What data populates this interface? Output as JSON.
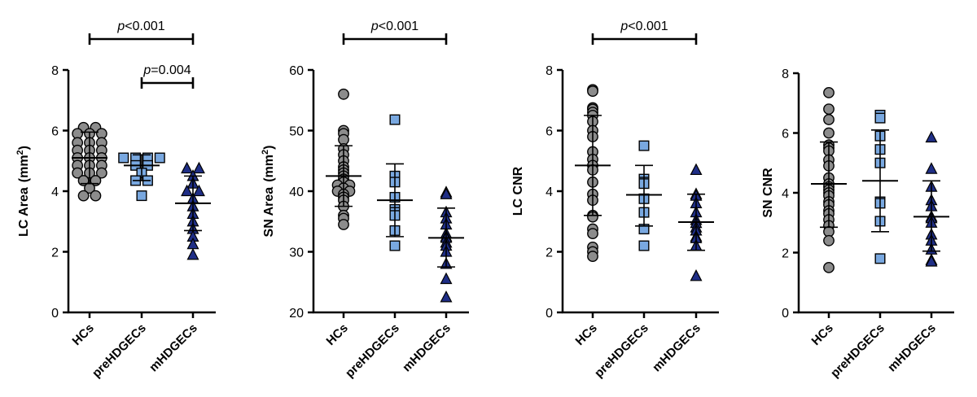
{
  "colors": {
    "hcs": "#8c8c8c",
    "pre": "#79a8e0",
    "mhd": "#1f2e86",
    "stroke": "#000000"
  },
  "chart_data": [
    {
      "type": "scatter",
      "ylabel_main": "LC Area",
      "ylabel_unit": "(mm",
      "ylabel_sup": "2",
      "ylabel_close": ")",
      "ylim": [
        0,
        8
      ],
      "yticks": [
        0,
        2,
        4,
        6,
        8
      ],
      "tick_labels": [
        "0",
        "2",
        "4",
        "6",
        "8"
      ],
      "categories": [
        "HCs",
        "preHDGECs",
        "mHDGECs"
      ],
      "series": [
        {
          "name": "HCs",
          "marker": "circle",
          "mean": 5.1,
          "sd_low": 4.25,
          "sd_high": 5.95,
          "values": [
            6.1,
            6.1,
            5.9,
            5.9,
            5.9,
            5.6,
            5.6,
            5.6,
            5.35,
            5.35,
            5.35,
            5.1,
            5.1,
            5.1,
            4.85,
            4.85,
            4.85,
            4.6,
            4.6,
            4.6,
            4.35,
            4.35,
            4.1,
            3.85,
            3.85
          ]
        },
        {
          "name": "preHDGECs",
          "marker": "square",
          "mean": 4.85,
          "sd_low": 4.35,
          "sd_high": 5.2,
          "values": [
            5.1,
            5.1,
            5.1,
            5.1,
            4.85,
            4.85,
            4.6,
            4.35,
            4.35,
            3.85
          ]
        },
        {
          "name": "mHDGECs",
          "marker": "triangle",
          "mean": 3.6,
          "sd_low": 2.7,
          "sd_high": 4.5,
          "values": [
            4.75,
            4.75,
            4.5,
            4.25,
            4.0,
            4.0,
            3.75,
            3.5,
            3.25,
            3.0,
            2.75,
            2.5,
            2.25,
            1.9
          ]
        }
      ],
      "sig": [
        {
          "from": 0,
          "to": 2,
          "p_italic": "p",
          "p_rest": "<0.001",
          "level": 1
        },
        {
          "from": 1,
          "to": 2,
          "p_italic": "p",
          "p_rest": "=0.004",
          "level": 2
        }
      ]
    },
    {
      "type": "scatter",
      "ylabel_main": "SN Area",
      "ylabel_unit": "(mm",
      "ylabel_sup": "2",
      "ylabel_close": ")",
      "ylim": [
        20,
        60
      ],
      "yticks": [
        20,
        30,
        40,
        50,
        60
      ],
      "tick_labels": [
        "20",
        "30",
        "40",
        "50",
        "60"
      ],
      "categories": [
        "HCs",
        "preHDGECs",
        "mHDGECs"
      ],
      "series": [
        {
          "name": "HCs",
          "marker": "circle",
          "mean": 42.5,
          "sd_low": 37.5,
          "sd_high": 47.5,
          "values": [
            56,
            50,
            49.5,
            48.5,
            47,
            46,
            45,
            44,
            43.5,
            43,
            42.5,
            42,
            41.5,
            41,
            41,
            40.5,
            40,
            40,
            39.5,
            39,
            38.5,
            37.5,
            36,
            35.5,
            34.5
          ]
        },
        {
          "name": "preHDGECs",
          "marker": "square",
          "mean": 38.5,
          "sd_low": 32.5,
          "sd_high": 44.5,
          "values": [
            51.8,
            42.5,
            41.5,
            39,
            37,
            36.5,
            36,
            33.5,
            31
          ]
        },
        {
          "name": "mHDGECs",
          "marker": "triangle",
          "mean": 32.3,
          "sd_low": 27.5,
          "sd_high": 37.2,
          "values": [
            39.8,
            39.5,
            36.5,
            35.5,
            34.5,
            33,
            32.5,
            32.3,
            31.5,
            31,
            30,
            28,
            25.5,
            22.5
          ]
        }
      ],
      "sig": [
        {
          "from": 0,
          "to": 2,
          "p_italic": "p",
          "p_rest": "<0.001",
          "level": 1
        }
      ]
    },
    {
      "type": "scatter",
      "ylabel_main": "LC CNR",
      "ylabel_unit": "",
      "ylabel_sup": "",
      "ylabel_close": "",
      "ylim": [
        0,
        8
      ],
      "yticks": [
        0,
        2,
        4,
        6,
        8
      ],
      "tick_labels": [
        "0",
        "2",
        "4",
        "6",
        "8"
      ],
      "categories": [
        "HCs",
        "preHDGECs",
        "mHDGECs"
      ],
      "series": [
        {
          "name": "HCs",
          "marker": "circle",
          "mean": 4.85,
          "sd_low": 3.2,
          "sd_high": 6.5,
          "values": [
            7.35,
            7.3,
            6.75,
            6.7,
            6.6,
            6.5,
            6.3,
            6.0,
            5.8,
            5.3,
            5.05,
            4.85,
            4.7,
            4.3,
            3.9,
            3.7,
            3.2,
            3.15,
            2.75,
            2.6,
            2.15,
            2.0,
            1.85
          ]
        },
        {
          "name": "preHDGECs",
          "marker": "square",
          "mean": 3.88,
          "sd_low": 2.85,
          "sd_high": 4.85,
          "values": [
            5.5,
            4.4,
            4.3,
            4.25,
            3.75,
            3.3,
            2.75,
            2.2
          ]
        },
        {
          "name": "mHDGECs",
          "marker": "triangle",
          "mean": 2.98,
          "sd_low": 2.05,
          "sd_high": 3.9,
          "values": [
            4.7,
            3.9,
            3.85,
            3.6,
            3.3,
            3.05,
            2.95,
            2.8,
            2.7,
            2.5,
            2.45,
            2.2,
            1.2
          ]
        }
      ],
      "sig": [
        {
          "from": 0,
          "to": 2,
          "p_italic": "p",
          "p_rest": "<0.001",
          "level": 1
        }
      ]
    },
    {
      "type": "scatter",
      "ylabel_main": "SN CNR",
      "ylabel_unit": "",
      "ylabel_sup": "",
      "ylabel_close": "",
      "ylim": [
        0,
        8
      ],
      "yticks": [
        0,
        2,
        4,
        6,
        8
      ],
      "tick_labels": [
        "0",
        "2",
        "4",
        "6",
        "8"
      ],
      "categories": [
        "HCs",
        "preHDGECs",
        "mHDGECs"
      ],
      "series": [
        {
          "name": "HCs",
          "marker": "circle",
          "mean": 4.3,
          "sd_low": 2.85,
          "sd_high": 5.7,
          "values": [
            7.35,
            6.8,
            6.45,
            6.0,
            5.6,
            5.5,
            5.4,
            5.1,
            4.9,
            4.5,
            4.3,
            4.2,
            4.1,
            4.0,
            3.9,
            3.7,
            3.6,
            3.4,
            3.3,
            3.1,
            2.9,
            2.7,
            2.4,
            1.5
          ]
        },
        {
          "name": "preHDGECs",
          "marker": "square",
          "mean": 4.4,
          "sd_low": 2.7,
          "sd_high": 6.1,
          "values": [
            6.6,
            6.5,
            5.9,
            5.45,
            5.0,
            3.7,
            3.65,
            3.05,
            1.8
          ]
        },
        {
          "name": "mHDGECs",
          "marker": "triangle",
          "mean": 3.2,
          "sd_low": 2.05,
          "sd_high": 4.4,
          "values": [
            5.85,
            4.8,
            4.2,
            3.75,
            3.55,
            3.2,
            3.15,
            3.0,
            2.6,
            2.4,
            2.1,
            1.75,
            1.7
          ]
        }
      ],
      "sig": []
    }
  ]
}
